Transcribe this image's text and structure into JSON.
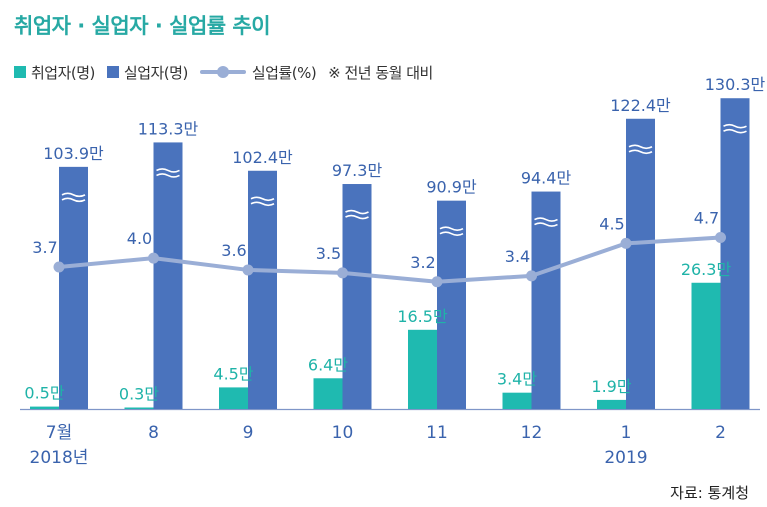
{
  "title": "취업자 · 실업자 · 실업률 추이",
  "legend": {
    "employed": "취업자(명)",
    "unemployed": "실업자(명)",
    "rate": "실업률(%)",
    "note": "※ 전년 동월 대비"
  },
  "source": "자료: 통계청",
  "colors": {
    "employed": "#1fbab0",
    "unemployed": "#4a73bd",
    "rate": "#9aaed6",
    "title": "#27a9a4"
  },
  "chart_data": {
    "type": "bar",
    "categories": [
      "7월",
      "8",
      "9",
      "10",
      "11",
      "12",
      "1",
      "2"
    ],
    "year_labels": [
      "2018년",
      "",
      "",
      "",
      "",
      "",
      "2019",
      ""
    ],
    "series": [
      {
        "name": "취업자(명)",
        "values": [
          0.5,
          0.3,
          4.5,
          6.4,
          16.5,
          3.4,
          1.9,
          26.3
        ],
        "labels": [
          "0.5만",
          "0.3만",
          "4.5만",
          "6.4만",
          "16.5만",
          "3.4만",
          "1.9만",
          "26.3만"
        ]
      },
      {
        "name": "실업자(명)",
        "values": [
          103.9,
          113.3,
          102.4,
          97.3,
          90.9,
          94.4,
          122.4,
          130.3
        ],
        "labels": [
          "103.9만",
          "113.3만",
          "102.4만",
          "97.3만",
          "90.9만",
          "94.4만",
          "122.4만",
          "130.3만"
        ]
      },
      {
        "name": "실업률(%)",
        "type": "line",
        "values": [
          3.7,
          4.0,
          3.6,
          3.5,
          3.2,
          3.4,
          4.5,
          4.7
        ],
        "labels": [
          "3.7",
          "4.0",
          "3.6",
          "3.5",
          "3.2",
          "3.4",
          "4.5",
          "4.7"
        ]
      }
    ],
    "axis_break": true
  }
}
